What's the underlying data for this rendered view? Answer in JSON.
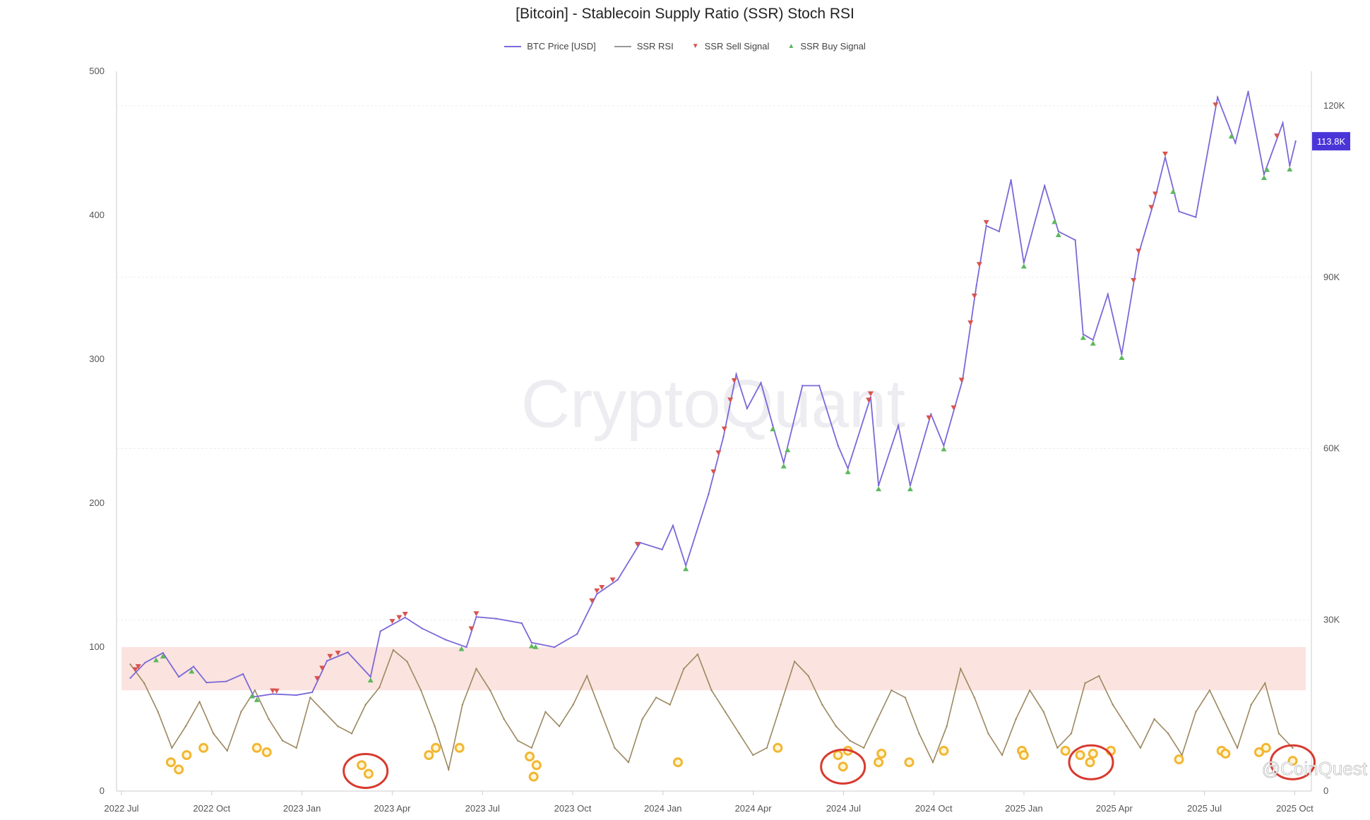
{
  "chart_data": {
    "type": "line",
    "title": "[Bitcoin] - Stablecoin Supply Ratio (SSR) Stoch RSI",
    "legend": [
      {
        "label": "BTC Price [USD]",
        "color": "#7b68d8",
        "kind": "line"
      },
      {
        "label": "SSR RSI",
        "color": "#999999",
        "kind": "line"
      },
      {
        "label": "SSR Sell Signal",
        "color": "#d9534f",
        "kind": "triangle-down"
      },
      {
        "label": "SSR Buy Signal",
        "color": "#5cb85c",
        "kind": "triangle-up"
      }
    ],
    "legend_position": "top-center",
    "x_ticks": [
      "2022 Jul",
      "2022 Oct",
      "2023 Jan",
      "2023 Apr",
      "2023 Jul",
      "2023 Oct",
      "2024 Jan",
      "2024 Apr",
      "2024 Jul",
      "2024 Oct",
      "2025 Jan",
      "2025 Apr",
      "2025 Jul",
      "2025 Oct"
    ],
    "left_axis": {
      "ylim": [
        0,
        500
      ],
      "ticks": [
        "0",
        "100",
        "200",
        "300",
        "400",
        "500"
      ]
    },
    "right_axis": {
      "ylim": [
        0,
        124000
      ],
      "ticks": [
        {
          "v": 0,
          "label": "0"
        },
        {
          "v": 30000,
          "label": "30K"
        },
        {
          "v": 60000,
          "label": "60K"
        },
        {
          "v": 90000,
          "label": "90K"
        },
        {
          "v": 120000,
          "label": "120K"
        }
      ]
    },
    "current_price_label": "113.8K",
    "overbought_band": [
      70,
      100
    ],
    "btc_price": [
      [
        "2022-07-10",
        19800
      ],
      [
        "2022-07-25",
        22500
      ],
      [
        "2022-08-12",
        24200
      ],
      [
        "2022-08-28",
        20000
      ],
      [
        "2022-09-12",
        21800
      ],
      [
        "2022-09-25",
        19000
      ],
      [
        "2022-10-15",
        19200
      ],
      [
        "2022-11-01",
        20500
      ],
      [
        "2022-11-12",
        16500
      ],
      [
        "2022-12-01",
        17000
      ],
      [
        "2022-12-25",
        16800
      ],
      [
        "2023-01-10",
        17300
      ],
      [
        "2023-01-25",
        22800
      ],
      [
        "2023-02-15",
        24300
      ],
      [
        "2023-03-10",
        20000
      ],
      [
        "2023-03-20",
        28000
      ],
      [
        "2023-04-14",
        30400
      ],
      [
        "2023-05-01",
        28500
      ],
      [
        "2023-05-25",
        26500
      ],
      [
        "2023-06-15",
        25200
      ],
      [
        "2023-06-25",
        30500
      ],
      [
        "2023-07-15",
        30200
      ],
      [
        "2023-08-10",
        29400
      ],
      [
        "2023-08-20",
        26000
      ],
      [
        "2023-09-12",
        25200
      ],
      [
        "2023-10-05",
        27500
      ],
      [
        "2023-10-25",
        34500
      ],
      [
        "2023-11-15",
        37000
      ],
      [
        "2023-12-08",
        43500
      ],
      [
        "2023-12-30",
        42300
      ],
      [
        "2024-01-10",
        46500
      ],
      [
        "2024-01-23",
        39500
      ],
      [
        "2024-02-15",
        52000
      ],
      [
        "2024-03-01",
        62000
      ],
      [
        "2024-03-14",
        73000
      ],
      [
        "2024-03-25",
        67000
      ],
      [
        "2024-04-08",
        71500
      ],
      [
        "2024-04-20",
        64000
      ],
      [
        "2024-05-01",
        57500
      ],
      [
        "2024-05-20",
        71000
      ],
      [
        "2024-06-06",
        71000
      ],
      [
        "2024-06-25",
        60500
      ],
      [
        "2024-07-05",
        56500
      ],
      [
        "2024-07-28",
        69000
      ],
      [
        "2024-08-05",
        53500
      ],
      [
        "2024-08-25",
        64000
      ],
      [
        "2024-09-06",
        53500
      ],
      [
        "2024-09-27",
        66000
      ],
      [
        "2024-10-10",
        60500
      ],
      [
        "2024-10-29",
        72000
      ],
      [
        "2024-11-12",
        88500
      ],
      [
        "2024-11-22",
        99000
      ],
      [
        "2024-12-05",
        98000
      ],
      [
        "2024-12-17",
        107000
      ],
      [
        "2024-12-30",
        92500
      ],
      [
        "2025-01-20",
        106000
      ],
      [
        "2025-02-03",
        98000
      ],
      [
        "2025-02-20",
        96500
      ],
      [
        "2025-02-28",
        80000
      ],
      [
        "2025-03-10",
        79000
      ],
      [
        "2025-03-25",
        87000
      ],
      [
        "2025-04-08",
        76500
      ],
      [
        "2025-04-25",
        94000
      ],
      [
        "2025-05-12",
        104000
      ],
      [
        "2025-05-22",
        111000
      ],
      [
        "2025-06-05",
        101500
      ],
      [
        "2025-06-22",
        100500
      ],
      [
        "2025-07-14",
        121500
      ],
      [
        "2025-08-01",
        113500
      ],
      [
        "2025-08-14",
        122500
      ],
      [
        "2025-08-30",
        108000
      ],
      [
        "2025-09-18",
        117000
      ],
      [
        "2025-09-25",
        109500
      ],
      [
        "2025-10-01",
        113800
      ]
    ],
    "ssr_rsi": {
      "start": "2022-07-10",
      "interval_days": 14,
      "values": [
        88,
        75,
        55,
        30,
        45,
        62,
        40,
        28,
        55,
        70,
        50,
        35,
        30,
        65,
        55,
        45,
        40,
        60,
        72,
        98,
        90,
        70,
        45,
        15,
        60,
        85,
        70,
        50,
        35,
        30,
        55,
        45,
        60,
        80,
        55,
        30,
        20,
        50,
        65,
        60,
        85,
        95,
        70,
        55,
        40,
        25,
        30,
        60,
        90,
        80,
        60,
        45,
        35,
        30,
        50,
        70,
        65,
        40,
        20,
        45,
        85,
        65,
        40,
        25,
        50,
        70,
        55,
        30,
        40,
        75,
        80,
        60,
        45,
        30,
        50,
        40,
        25,
        55,
        70,
        50,
        30,
        60,
        75,
        40,
        30
      ]
    },
    "rsi_low_markers": [
      [
        "2022-08-20",
        20
      ],
      [
        "2022-08-28",
        15
      ],
      [
        "2022-09-05",
        25
      ],
      [
        "2022-09-22",
        30
      ],
      [
        "2022-11-15",
        30
      ],
      [
        "2022-11-25",
        27
      ],
      [
        "2023-03-01",
        18
      ],
      [
        "2023-03-08",
        12
      ],
      [
        "2023-05-08",
        25
      ],
      [
        "2023-05-15",
        30
      ],
      [
        "2023-06-08",
        30
      ],
      [
        "2023-08-18",
        24
      ],
      [
        "2023-08-25",
        18
      ],
      [
        "2023-08-22",
        10
      ],
      [
        "2024-01-15",
        20
      ],
      [
        "2024-04-25",
        30
      ],
      [
        "2024-06-25",
        25
      ],
      [
        "2024-06-30",
        17
      ],
      [
        "2024-07-05",
        28
      ],
      [
        "2024-08-05",
        20
      ],
      [
        "2024-08-08",
        26
      ],
      [
        "2024-09-05",
        20
      ],
      [
        "2024-10-10",
        28
      ],
      [
        "2024-12-28",
        28
      ],
      [
        "2024-12-30",
        25
      ],
      [
        "2025-02-10",
        28
      ],
      [
        "2025-02-25",
        25
      ],
      [
        "2025-03-07",
        20
      ],
      [
        "2025-03-10",
        26
      ],
      [
        "2025-03-28",
        28
      ],
      [
        "2025-06-05",
        22
      ],
      [
        "2025-07-18",
        28
      ],
      [
        "2025-07-22",
        26
      ],
      [
        "2025-08-25",
        27
      ],
      [
        "2025-09-01",
        30
      ],
      [
        "2025-09-28",
        21
      ]
    ],
    "annotations_circled": [
      [
        "2023-03-05",
        14
      ],
      [
        "2024-06-30",
        17
      ],
      [
        "2025-03-08",
        20
      ],
      [
        "2025-09-28",
        20
      ]
    ],
    "sell_signals": [
      "2022-07-15",
      "2022-07-18",
      "2022-12-01",
      "2022-12-05",
      "2023-01-15",
      "2023-01-20",
      "2023-01-28",
      "2023-02-05",
      "2023-04-01",
      "2023-04-08",
      "2023-04-14",
      "2023-06-20",
      "2023-06-25",
      "2023-10-20",
      "2023-10-25",
      "2023-10-30",
      "2023-11-10",
      "2023-12-05",
      "2024-02-20",
      "2024-02-25",
      "2024-03-02",
      "2024-03-08",
      "2024-03-12",
      "2024-07-26",
      "2024-07-28",
      "2024-09-25",
      "2024-10-20",
      "2024-10-28",
      "2024-11-06",
      "2024-11-10",
      "2024-11-15",
      "2024-11-22",
      "2025-04-20",
      "2025-04-25",
      "2025-05-08",
      "2025-05-12",
      "2025-05-22",
      "2025-07-12",
      "2025-09-12"
    ],
    "buy_signals": [
      "2022-08-05",
      "2022-08-12",
      "2022-09-10",
      "2022-11-10",
      "2022-11-15",
      "2023-03-10",
      "2023-06-10",
      "2023-08-20",
      "2023-08-24",
      "2024-01-23",
      "2024-04-20",
      "2024-05-01",
      "2024-05-05",
      "2024-07-05",
      "2024-08-05",
      "2024-09-06",
      "2024-10-10",
      "2024-12-30",
      "2025-01-30",
      "2025-02-03",
      "2025-02-28",
      "2025-03-10",
      "2025-04-08",
      "2025-05-30",
      "2025-07-28",
      "2025-08-30",
      "2025-09-02",
      "2025-09-25"
    ]
  },
  "watermarks": {
    "center": "CryptoQuant",
    "corner": "@CoinQuest"
  }
}
